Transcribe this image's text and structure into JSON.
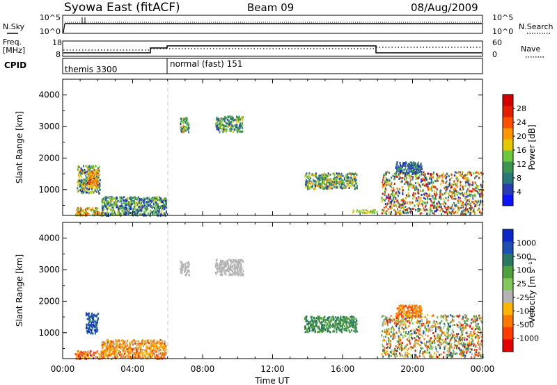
{
  "header": {
    "station": "Syowa East (fitACF)",
    "beam": "Beam 09",
    "date": "08/Aug/2009"
  },
  "noise_panel": {
    "left_label": "N.Sky",
    "right_label": "N.Search",
    "left_ticks": [
      "10^5",
      "10^0"
    ],
    "right_ticks": [
      "10^5",
      "10^0"
    ]
  },
  "freq_panel": {
    "left_label_line1": "Freq.",
    "left_label_line2": "[MHz]",
    "right_label": "Nave",
    "left_ticks": [
      "18",
      "8"
    ],
    "right_ticks": [
      "60",
      "0"
    ]
  },
  "cpid": {
    "label": "CPID",
    "modes": [
      "themis 3300",
      "normal (fast) 151"
    ]
  },
  "colors": {
    "power": [
      "#0a14ff",
      "#283cb4",
      "#287878",
      "#3c9650",
      "#6ec83c",
      "#e6c800",
      "#ff9600",
      "#ff5000",
      "#e61e00",
      "#d20000"
    ],
    "velocity": [
      "#0a28c8",
      "#1e50b4",
      "#287864",
      "#50a03c",
      "#82c85a",
      "#b4b4b4",
      "#ffb400",
      "#ff7800",
      "#ff3c00",
      "#e60000"
    ]
  },
  "chart_data": [
    {
      "type": "heatmap",
      "name": "power",
      "title": "",
      "xlabel": "",
      "ylabel": "Slant Range [km]",
      "xlim_hours": [
        0,
        24
      ],
      "ylim_km": [
        180,
        4500
      ],
      "y_ticks": [
        "1000",
        "2000",
        "3000",
        "4000"
      ],
      "colorbar_label": "Power [dB]",
      "colorbar_ticks": [
        "4",
        "8",
        "12",
        "16",
        "20",
        "24",
        "28"
      ],
      "regions": [
        {
          "t0": 0.7,
          "t1": 2.3,
          "r0": 200,
          "r1": 450,
          "v0": 12,
          "v1": 30
        },
        {
          "t0": 0.8,
          "t1": 2.1,
          "r0": 900,
          "r1": 1800,
          "v0": 2,
          "v1": 22
        },
        {
          "t0": 1.4,
          "t1": 2.0,
          "r0": 1100,
          "r1": 1600,
          "v0": 16,
          "v1": 26
        },
        {
          "t0": 2.2,
          "t1": 5.9,
          "r0": 200,
          "r1": 800,
          "v0": 2,
          "v1": 18
        },
        {
          "t0": 6.7,
          "t1": 7.2,
          "r0": 2850,
          "r1": 3300,
          "v0": 4,
          "v1": 20
        },
        {
          "t0": 8.7,
          "t1": 10.3,
          "r0": 2850,
          "r1": 3350,
          "v0": 4,
          "v1": 18
        },
        {
          "t0": 13.8,
          "t1": 16.8,
          "r0": 1050,
          "r1": 1550,
          "v0": 4,
          "v1": 22
        },
        {
          "t0": 18.2,
          "t1": 24.0,
          "r0": 250,
          "r1": 1600,
          "v0": 2,
          "v1": 30
        },
        {
          "t0": 19.0,
          "t1": 20.5,
          "r0": 1500,
          "r1": 1900,
          "v0": 2,
          "v1": 12
        },
        {
          "t0": 16.5,
          "t1": 18.0,
          "r0": 280,
          "r1": 380,
          "v0": 12,
          "v1": 18
        }
      ]
    },
    {
      "type": "heatmap",
      "name": "velocity",
      "title": "",
      "xlabel": "Time UT",
      "ylabel": "Slant Range [km]",
      "xlim_hours": [
        0,
        24
      ],
      "ylim_km": [
        180,
        4500
      ],
      "x_ticks": [
        "00:00",
        "04:00",
        "08:00",
        "12:00",
        "16:00",
        "20:00",
        "00:00"
      ],
      "y_ticks": [
        "1000",
        "2000",
        "3000",
        "4000"
      ],
      "colorbar_label": "Velocity [m s⁻¹]",
      "colorbar_ticks": [
        "1000",
        "500",
        "100",
        "25",
        "-25",
        "-100",
        "-500",
        "-1000"
      ],
      "regions": [
        {
          "t0": 0.7,
          "t1": 2.3,
          "r0": 200,
          "r1": 450,
          "v0": 5,
          "v1": 9
        },
        {
          "t0": 1.3,
          "t1": 2.0,
          "r0": 1000,
          "r1": 1650,
          "v0": 0,
          "v1": 2
        },
        {
          "t0": 2.2,
          "t1": 5.9,
          "r0": 200,
          "r1": 800,
          "v0": 5,
          "v1": 8
        },
        {
          "t0": 6.7,
          "t1": 7.2,
          "r0": 2850,
          "r1": 3300,
          "v0": 5,
          "v1": 5
        },
        {
          "t0": 8.7,
          "t1": 10.3,
          "r0": 2850,
          "r1": 3350,
          "v0": 5,
          "v1": 5
        },
        {
          "t0": 13.8,
          "t1": 16.8,
          "r0": 1050,
          "r1": 1550,
          "v0": 2,
          "v1": 3
        },
        {
          "t0": 18.2,
          "t1": 24.0,
          "r0": 250,
          "r1": 1600,
          "v0": 1,
          "v1": 9
        },
        {
          "t0": 19.0,
          "t1": 20.5,
          "r0": 1500,
          "r1": 1900,
          "v0": 6,
          "v1": 8
        }
      ]
    }
  ]
}
